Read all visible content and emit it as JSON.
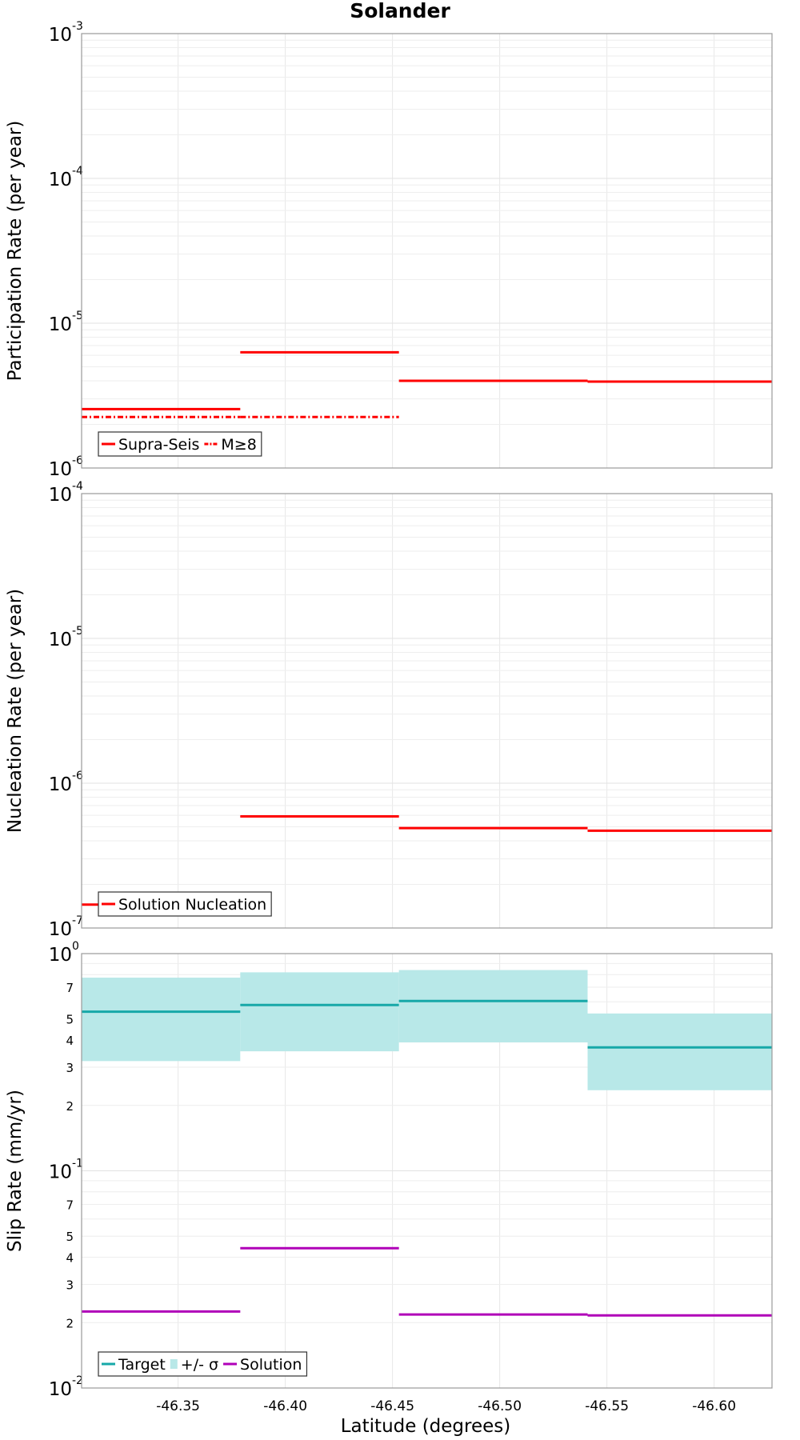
{
  "chart_data": {
    "title": "Solander",
    "xlabel": "Latitude (degrees)",
    "xlim": [
      -46.305,
      -46.627
    ],
    "x_ticks": [
      "-46.35",
      "-46.40",
      "-46.45",
      "-46.50",
      "-46.55",
      "-46.60"
    ],
    "x_tick_values": [
      -46.35,
      -46.4,
      -46.45,
      -46.5,
      -46.55,
      -46.6
    ],
    "panels": [
      {
        "type": "line",
        "scale": "log",
        "ylabel": "Participation Rate (per year)",
        "ylim": [
          1e-06,
          0.001
        ],
        "major_ticks": [
          {
            "base": "10",
            "exp": "-6"
          },
          {
            "base": "10",
            "exp": "-5"
          },
          {
            "base": "10",
            "exp": "-4"
          },
          {
            "base": "10",
            "exp": "-3"
          }
        ],
        "series": [
          {
            "name": "Supra-Seis",
            "color": "#ff0000",
            "style": "solid",
            "segments": [
              [
                -46.305,
                -46.379,
                2.55e-06
              ],
              [
                -46.379,
                -46.453,
                6.3e-06
              ],
              [
                -46.453,
                -46.541,
                4e-06
              ],
              [
                -46.541,
                -46.627,
                3.95e-06
              ]
            ]
          },
          {
            "name": "M≥8",
            "color": "#ff0000",
            "style": "dashdot",
            "segments": [
              [
                -46.305,
                -46.379,
                2.25e-06
              ],
              [
                -46.379,
                -46.453,
                2.25e-06
              ]
            ]
          }
        ]
      },
      {
        "type": "line",
        "scale": "log",
        "ylabel": "Nucleation Rate (per year)",
        "ylim": [
          1e-07,
          0.0001
        ],
        "major_ticks": [
          {
            "base": "10",
            "exp": "-7"
          },
          {
            "base": "10",
            "exp": "-6"
          },
          {
            "base": "10",
            "exp": "-5"
          },
          {
            "base": "10",
            "exp": "-4"
          }
        ],
        "series": [
          {
            "name": "Solution Nucleation",
            "color": "#ff0000",
            "style": "solid",
            "segments": [
              [
                -46.305,
                -46.379,
                1.45e-07
              ],
              [
                -46.379,
                -46.453,
                5.9e-07
              ],
              [
                -46.453,
                -46.541,
                4.9e-07
              ],
              [
                -46.541,
                -46.627,
                4.7e-07
              ]
            ]
          }
        ]
      },
      {
        "type": "area",
        "scale": "log",
        "ylabel": "Slip Rate (mm/yr)",
        "ylim": [
          0.01,
          1.0
        ],
        "major_ticks": [
          {
            "base": "10",
            "exp": "-2"
          },
          {
            "base": "10",
            "exp": "-1"
          },
          {
            "base": "10",
            "exp": "0"
          }
        ],
        "minor_labels": [
          "2",
          "3",
          "4",
          "5",
          "7"
        ],
        "series": [
          {
            "name": "+/- σ",
            "kind": "band",
            "color": "#b8e8e8",
            "segments": [
              [
                -46.305,
                -46.379,
                0.32,
                0.775
              ],
              [
                -46.379,
                -46.453,
                0.355,
                0.82
              ],
              [
                -46.453,
                -46.541,
                0.39,
                0.84
              ],
              [
                -46.541,
                -46.627,
                0.235,
                0.53
              ]
            ]
          },
          {
            "name": "Target",
            "kind": "line",
            "color": "#17a8a8",
            "style": "solid",
            "segments": [
              [
                -46.305,
                -46.379,
                0.54
              ],
              [
                -46.379,
                -46.453,
                0.58
              ],
              [
                -46.453,
                -46.541,
                0.605
              ],
              [
                -46.541,
                -46.627,
                0.37
              ]
            ]
          },
          {
            "name": "Solution",
            "kind": "line",
            "color": "#b000b8",
            "style": "solid",
            "segments": [
              [
                -46.305,
                -46.379,
                0.0225
              ],
              [
                -46.379,
                -46.453,
                0.044
              ],
              [
                -46.453,
                -46.541,
                0.0218
              ],
              [
                -46.541,
                -46.627,
                0.0216
              ]
            ]
          }
        ]
      }
    ]
  }
}
